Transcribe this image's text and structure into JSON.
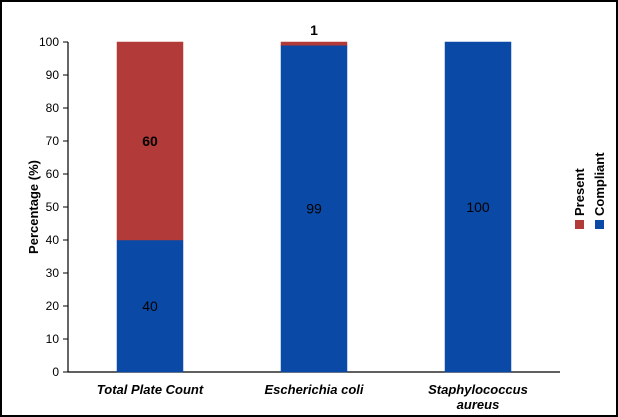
{
  "chart_data": {
    "type": "bar",
    "stacked": true,
    "title": "",
    "xlabel": "",
    "ylabel": "Percentage (%)",
    "ylim": [
      0,
      100
    ],
    "yticks": [
      0,
      10,
      20,
      30,
      40,
      50,
      60,
      70,
      80,
      90,
      100
    ],
    "grid": false,
    "legend_position": "right",
    "categories": [
      [
        "Total Plate Count"
      ],
      [
        "Escherichia coli"
      ],
      [
        "Staphylococcus",
        "aureus"
      ]
    ],
    "series": [
      {
        "name": "Compliant",
        "color": "#0a4aa6",
        "values": [
          40,
          99,
          100
        ],
        "labels": [
          "40",
          "99",
          "100"
        ]
      },
      {
        "name": "Present",
        "color": "#b23a38",
        "values": [
          60,
          1,
          0
        ],
        "labels": [
          "60",
          "1",
          ""
        ]
      }
    ]
  }
}
